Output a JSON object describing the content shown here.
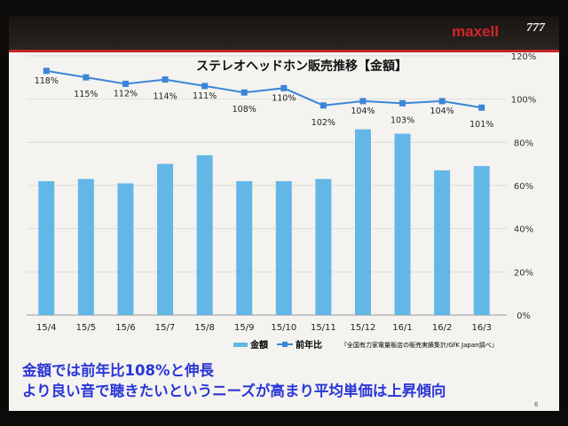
{
  "brand": "maxell",
  "brand_mark": "777",
  "page_number": "6",
  "headline": [
    "金額では前年比108%と伸長",
    "より良い音で聴きたいというニーズが高まり平均単価は上昇傾向"
  ],
  "source": "『全国有力家電量販店の販売実績集計/GfK Japan調べ』",
  "colors": {
    "bar": "#63b7e6",
    "line": "#3b86d8",
    "headline": "#2a36d8",
    "brand": "#d0262a"
  },
  "chart_data": {
    "type": "bar+line",
    "title": "ステレオヘッドホン販売推移【金額】",
    "categories": [
      "15/4",
      "15/5",
      "15/6",
      "15/7",
      "15/8",
      "15/9",
      "15/10",
      "15/11",
      "15/12",
      "16/1",
      "16/2",
      "16/3"
    ],
    "series": [
      {
        "name": "金額",
        "type": "bar",
        "axis": "left (unlabeled)",
        "values": [
          62,
          63,
          61,
          70,
          74,
          62,
          62,
          63,
          86,
          84,
          67,
          69
        ]
      },
      {
        "name": "前年比",
        "type": "line",
        "axis": "right",
        "values": [
          118,
          115,
          112,
          114,
          111,
          108,
          110,
          102,
          104,
          103,
          104,
          101
        ],
        "labels": [
          "118%",
          "115%",
          "112%",
          "114%",
          "111%",
          "108%",
          "110%",
          "102%",
          "104%",
          "103%",
          "104%",
          "101%"
        ]
      }
    ],
    "right_axis": {
      "ticks": [
        "0%",
        "20%",
        "40%",
        "60%",
        "80%",
        "100%",
        "120%"
      ],
      "range": [
        0,
        120
      ]
    },
    "grid": true,
    "legend": "bottom-right"
  }
}
